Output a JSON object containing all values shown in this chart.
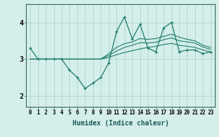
{
  "xlabel": "Humidex (Indice chaleur)",
  "bg_color": "#d4eeea",
  "grid_color": "#a8ccca",
  "line_color": "#1a7a6a",
  "xlim": [
    -0.5,
    23.5
  ],
  "ylim": [
    1.7,
    4.5
  ],
  "yticks": [
    2,
    3,
    4
  ],
  "xticks": [
    0,
    1,
    2,
    3,
    4,
    5,
    6,
    7,
    8,
    9,
    10,
    11,
    12,
    13,
    14,
    15,
    16,
    17,
    18,
    19,
    20,
    21,
    22,
    23
  ],
  "series": [
    [
      3.3,
      3.0,
      3.0,
      3.0,
      3.0,
      2.7,
      2.5,
      2.2,
      2.35,
      2.5,
      2.9,
      3.75,
      4.15,
      3.55,
      3.95,
      3.3,
      3.2,
      3.85,
      4.0,
      3.2,
      3.25,
      3.25,
      3.15,
      3.2
    ],
    [
      3.0,
      3.0,
      3.0,
      3.0,
      3.0,
      3.0,
      3.0,
      3.0,
      3.0,
      3.0,
      3.05,
      3.12,
      3.18,
      3.23,
      3.28,
      3.32,
      3.35,
      3.4,
      3.43,
      3.38,
      3.35,
      3.32,
      3.25,
      3.2
    ],
    [
      3.0,
      3.0,
      3.0,
      3.0,
      3.0,
      3.0,
      3.0,
      3.0,
      3.0,
      3.0,
      3.1,
      3.22,
      3.32,
      3.38,
      3.45,
      3.44,
      3.46,
      3.53,
      3.58,
      3.5,
      3.47,
      3.44,
      3.33,
      3.27
    ],
    [
      3.0,
      3.0,
      3.0,
      3.0,
      3.0,
      3.0,
      3.0,
      3.0,
      3.0,
      3.0,
      3.15,
      3.32,
      3.42,
      3.47,
      3.56,
      3.54,
      3.56,
      3.62,
      3.68,
      3.6,
      3.54,
      3.5,
      3.38,
      3.32
    ]
  ]
}
